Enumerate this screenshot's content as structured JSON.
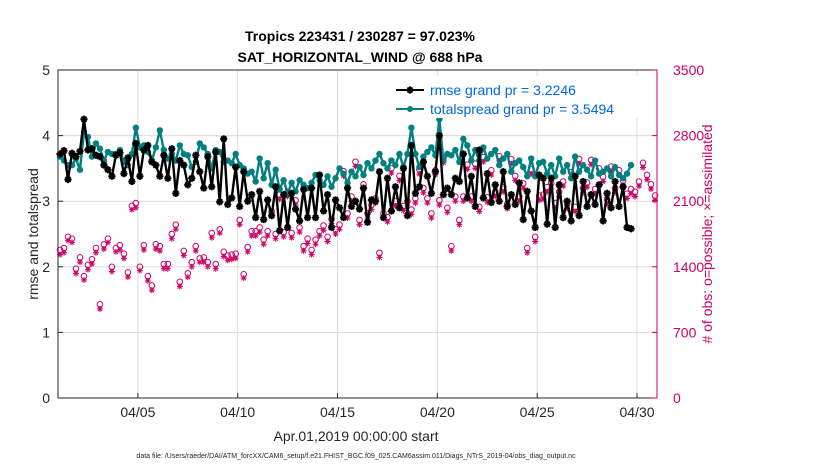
{
  "chart_data": {
    "type": "line",
    "title_line1": "Tropics 223431 / 230287 = 97.023%",
    "title_line2": "SAT_HORIZONTAL_WIND @ 688 hPa",
    "xlabel": "Apr.01,2019 00:00:00 start",
    "ylabel_left": "rmse and totalspread",
    "ylabel_right": "# of obs: o=possible; ×=assimilated",
    "x_range_days": [
      1,
      31
    ],
    "ylim_left": [
      0,
      5
    ],
    "ylim_right": [
      0,
      3500
    ],
    "yticks_left": [
      "0",
      "1",
      "2",
      "3",
      "4",
      "5"
    ],
    "yticks_right": [
      "0",
      "700",
      "1400",
      "2100",
      "2800",
      "3500"
    ],
    "xticks": [
      {
        "day": 5,
        "label": "04/05"
      },
      {
        "day": 10,
        "label": "04/10"
      },
      {
        "day": 15,
        "label": "04/15"
      },
      {
        "day": 20,
        "label": "04/20"
      },
      {
        "day": 25,
        "label": "04/25"
      },
      {
        "day": 30,
        "label": "04/30"
      }
    ],
    "grid": true,
    "legend_position": "top-right",
    "colors": {
      "rmse": "#000000",
      "spread": "#008080",
      "obs": "#cc0066"
    },
    "legend": [
      {
        "name": "rmse grand pr = 3.2246",
        "series": "rmse",
        "marker": "star"
      },
      {
        "name": "totalspread grand pr = 3.5494",
        "series": "spread",
        "marker": "circle"
      }
    ],
    "rmse": [
      3.72,
      3.77,
      3.33,
      3.73,
      3.68,
      3.76,
      4.25,
      3.78,
      3.8,
      3.7,
      3.68,
      3.55,
      3.48,
      3.38,
      3.7,
      3.74,
      3.42,
      3.66,
      3.3,
      3.88,
      3.38,
      3.78,
      3.85,
      3.6,
      3.55,
      3.38,
      3.7,
      3.35,
      3.8,
      3.12,
      3.62,
      3.55,
      3.25,
      3.35,
      3.7,
      3.45,
      3.2,
      3.68,
      3.22,
      3.75,
      2.99,
      3.95,
      2.95,
      3.05,
      3.52,
      2.92,
      3.45,
      3.0,
      3.1,
      2.75,
      3.15,
      2.72,
      3.02,
      2.78,
      3.22,
      2.55,
      3.1,
      2.6,
      3.12,
      2.88,
      2.7,
      3.18,
      2.75,
      3.2,
      2.75,
      3.4,
      2.85,
      3.1,
      2.6,
      3.02,
      2.9,
      2.75,
      3.2,
      2.92,
      3.0,
      2.88,
      3.2,
      2.68,
      3.02,
      3.0,
      3.45,
      2.75,
      3.35,
      2.85,
      3.22,
      2.9,
      3.5,
      2.78,
      3.85,
      3.12,
      3.22,
      3.6,
      3.38,
      3.12,
      3.45,
      4.0,
      3.1,
      3.2,
      3.1,
      3.35,
      3.3,
      3.72,
      3.05,
      3.38,
      2.92,
      3.78,
      3.05,
      3.42,
      2.98,
      3.25,
      3.0,
      3.45,
      2.92,
      3.1,
      2.95,
      3.28,
      2.72,
      3.15,
      2.85,
      2.6,
      3.4,
      3.35,
      2.65,
      3.35,
      2.6,
      3.25,
      2.75,
      3.0,
      2.7,
      3.38,
      2.78,
      3.3,
      2.92,
      3.1,
      2.95,
      3.25,
      2.7,
      3.12,
      2.9,
      3.3,
      2.92,
      3.22,
      2.6,
      2.58
    ],
    "totalspread": [
      3.68,
      3.62,
      3.55,
      3.55,
      3.65,
      3.48,
      4.05,
      3.98,
      3.68,
      3.88,
      3.8,
      3.62,
      3.75,
      3.72,
      3.72,
      3.78,
      3.6,
      3.55,
      3.72,
      4.12,
      3.82,
      3.85,
      3.75,
      3.62,
      3.82,
      4.08,
      3.78,
      3.65,
      3.72,
      3.62,
      3.85,
      3.72,
      3.7,
      3.52,
      3.6,
      3.88,
      3.82,
      3.72,
      3.5,
      3.78,
      3.75,
      3.6,
      3.62,
      3.58,
      3.72,
      3.55,
      3.5,
      3.42,
      3.45,
      3.3,
      3.65,
      3.35,
      3.58,
      3.25,
      3.48,
      3.18,
      3.32,
      3.12,
      3.28,
      3.15,
      3.32,
      3.25,
      3.2,
      3.28,
      3.4,
      3.32,
      3.25,
      3.38,
      3.22,
      3.35,
      3.5,
      3.42,
      3.28,
      3.45,
      3.38,
      3.52,
      3.4,
      3.58,
      3.5,
      3.62,
      3.72,
      3.58,
      3.5,
      3.62,
      3.55,
      3.72,
      3.52,
      3.72,
      4.12,
      3.72,
      3.52,
      3.68,
      3.75,
      3.82,
      3.7,
      4.25,
      3.62,
      3.72,
      3.7,
      3.78,
      3.6,
      3.95,
      3.85,
      3.62,
      3.78,
      3.62,
      3.82,
      3.65,
      3.72,
      3.78,
      3.55,
      3.65,
      3.72,
      3.45,
      3.58,
      3.62,
      3.52,
      3.38,
      3.65,
      3.38,
      3.58,
      3.6,
      3.42,
      3.55,
      3.38,
      3.65,
      3.45,
      3.55,
      3.35,
      3.68,
      3.45,
      3.55,
      3.48,
      3.38,
      3.62,
      3.42,
      3.45,
      3.5,
      3.38,
      3.52,
      3.4,
      3.35,
      3.42,
      3.55
    ],
    "obs_possible": [
      1580,
      1600,
      1720,
      1700,
      1380,
      1500,
      1300,
      1420,
      1480,
      1600,
      1000,
      1640,
      1700,
      1400,
      1600,
      1630,
      1540,
      1340,
      2050,
      2080,
      1400,
      1630,
      1300,
      1200,
      1640,
      1620,
      1430,
      1430,
      1750,
      1850,
      1240,
      1570,
      1330,
      1450,
      1620,
      1490,
      1500,
      1450,
      1760,
      1430,
      1800,
      1560,
      1520,
      1530,
      1540,
      1900,
      1320,
      1610,
      1780,
      1780,
      1820,
      1690,
      1780,
      1990,
      1750,
      2170,
      1770,
      2200,
      1760,
      2110,
      1820,
      1620,
      1700,
      1580,
      1690,
      1780,
      1840,
      1720,
      1910,
      1800,
      1850,
      2420,
      1970,
      2150,
      2520,
      1900,
      2280,
      1970,
      2060,
      2130,
      1550,
      1970,
      1930,
      2450,
      2100,
      2370,
      2050,
      2100,
      2010,
      2130,
      2440,
      2240,
      2130,
      1970,
      2430,
      2110,
      2560,
      2030,
      1620,
      2150,
      1900,
      2150,
      2490,
      2150,
      2500,
      2040,
      2570,
      2140,
      2430,
      2200,
      2580,
      2250,
      2070,
      2550,
      2370,
      2150,
      2290,
      1600,
      2440,
      1720,
      2160,
      2170,
      2250,
      2290,
      2080,
      2200,
      2310,
      2070,
      2410,
      2040,
      2550,
      2240,
      2300,
      2540,
      2230,
      2450,
      2360,
      2120,
      2470,
      2240,
      2430,
      2320,
      2180,
      2230,
      2200,
      2310,
      2510,
      2380,
      2280,
      2160
    ],
    "obs_assimilated": [
      1530,
      1550,
      1680,
      1660,
      1330,
      1450,
      1260,
      1370,
      1430,
      1550,
      950,
      1590,
      1660,
      1350,
      1560,
      1580,
      1490,
      1290,
      2010,
      2030,
      1360,
      1580,
      1250,
      1150,
      1590,
      1570,
      1380,
      1380,
      1700,
      1800,
      1190,
      1520,
      1290,
      1400,
      1570,
      1450,
      1450,
      1400,
      1710,
      1380,
      1760,
      1510,
      1470,
      1480,
      1490,
      1850,
      1280,
      1560,
      1730,
      1730,
      1770,
      1640,
      1730,
      1940,
      1700,
      2120,
      1720,
      2150,
      1710,
      2060,
      1770,
      1570,
      1650,
      1530,
      1640,
      1730,
      1790,
      1670,
      1860,
      1750,
      1800,
      2370,
      1920,
      2100,
      2470,
      1850,
      2230,
      1920,
      2010,
      2080,
      1500,
      1920,
      1880,
      2400,
      2050,
      2320,
      2000,
      2050,
      1960,
      2080,
      2390,
      2190,
      2080,
      1920,
      2380,
      2060,
      2510,
      1980,
      1570,
      2100,
      1850,
      2100,
      2440,
      2100,
      2450,
      1990,
      2520,
      2090,
      2380,
      2150,
      2530,
      2200,
      2020,
      2500,
      2320,
      2100,
      2240,
      1550,
      2390,
      1670,
      2110,
      2120,
      2200,
      2240,
      2030,
      2150,
      2260,
      2020,
      2360,
      1990,
      2500,
      2190,
      2250,
      2490,
      2180,
      2400,
      2310,
      2070,
      2420,
      2190,
      2380,
      2270,
      2130,
      2180,
      2150,
      2260,
      2460,
      2330,
      2230,
      2110
    ],
    "footer_note": "data file: /Users/raeder/DAI/ATM_forcXX/CAM6_setup/f.e21.FHIST_BGC.f09_025.CAM6assim.011/Diags_NTrS_2019-04/obs_diag_output.nc"
  }
}
